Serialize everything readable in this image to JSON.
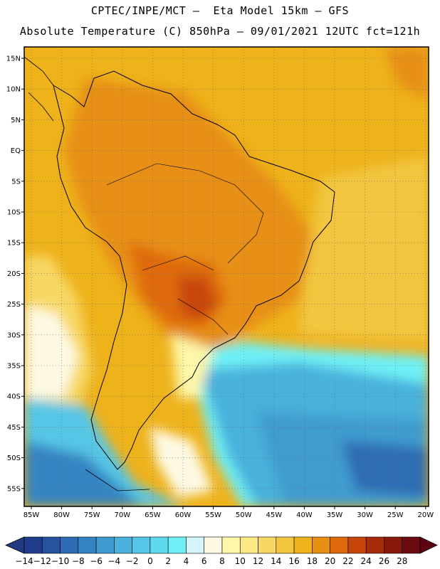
{
  "header": {
    "line1": "CPTEC/INPE/MCT –  Eta Model 15km – GFS",
    "line2": "Absolute Temperature (C) 850hPa – 09/01/2021 12UTC fct=121h"
  },
  "map": {
    "lat_labels": [
      "15N",
      "10N",
      "5N",
      "EQ",
      "5S",
      "10S",
      "15S",
      "20S",
      "25S",
      "30S",
      "35S",
      "40S",
      "45S",
      "50S",
      "55S"
    ],
    "lon_labels": [
      "85W",
      "80W",
      "75W",
      "70W",
      "65W",
      "60W",
      "55W",
      "50W",
      "45W",
      "40W",
      "35W",
      "30W",
      "25W",
      "20W"
    ],
    "grid": "dotted"
  },
  "colorbar": {
    "labels": [
      "-14",
      "-12",
      "-10",
      "-8",
      "-6",
      "-4",
      "-2",
      "0",
      "2",
      "4",
      "6",
      "8",
      "10",
      "12",
      "14",
      "16",
      "18",
      "20",
      "22",
      "24",
      "26",
      "28"
    ],
    "colors": [
      "#1f3d8c",
      "#2553a0",
      "#2d6cb3",
      "#3584c2",
      "#3f9bcf",
      "#49b1db",
      "#56c6e6",
      "#5fd9ee",
      "#6ef0f6",
      "#d4f6fb",
      "#fdf9e4",
      "#fdf7a8",
      "#fbe985",
      "#f7d865",
      "#f2c63f",
      "#eeb21b",
      "#e78f12",
      "#de6a0c",
      "#c8460a",
      "#a82c0b",
      "#86180c",
      "#6b0a10"
    ],
    "under_color": "#223a82",
    "over_color": "#5e0212"
  }
}
